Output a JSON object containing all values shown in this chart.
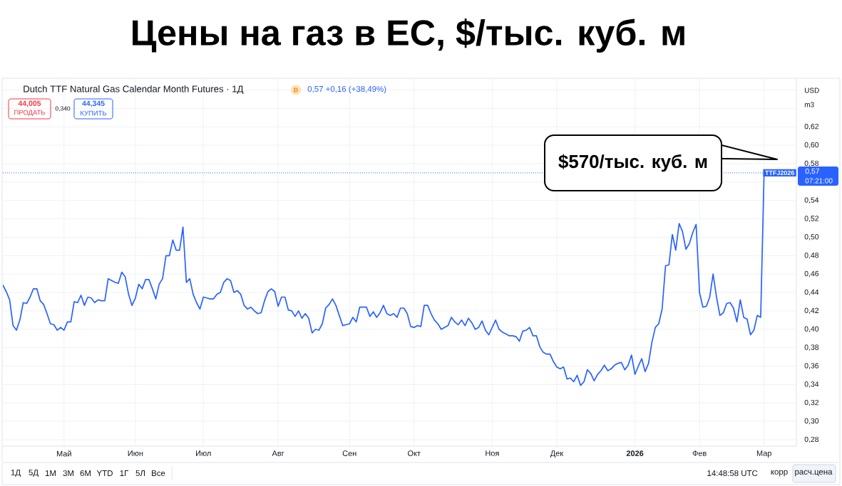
{
  "chart_data": {
    "type": "line",
    "title": "Цены на газ в ЕС, $/тыс. куб. м",
    "subtitle": "Dutch TTF Natural Gas Calendar Month Futures · 1Д",
    "color": "#2962ff",
    "line_style": "solid",
    "grid": true,
    "categories": [
      null,
      null,
      null,
      null,
      null,
      null,
      null,
      null,
      null,
      null,
      null,
      null,
      null,
      null,
      null,
      null,
      null,
      null,
      "Май",
      null,
      null,
      null,
      null,
      null,
      null,
      null,
      null,
      null,
      null,
      null,
      null,
      null,
      null,
      null,
      null,
      null,
      null,
      null,
      null,
      "Июн",
      null,
      null,
      null,
      null,
      null,
      null,
      null,
      null,
      null,
      null,
      null,
      null,
      null,
      null,
      null,
      null,
      null,
      null,
      null,
      "Июл",
      null,
      null,
      null,
      null,
      null,
      null,
      null,
      null,
      null,
      null,
      null,
      null,
      null,
      null,
      null,
      null,
      null,
      null,
      null,
      null,
      null,
      "Авг",
      null,
      null,
      null,
      null,
      null,
      null,
      null,
      null,
      null,
      null,
      null,
      null,
      null,
      null,
      null,
      null,
      null,
      null,
      null,
      null,
      "Сен",
      null,
      null,
      null,
      null,
      null,
      null,
      null,
      null,
      null,
      null,
      null,
      null,
      null,
      null,
      null,
      null,
      null,
      null,
      "Окт",
      null,
      null,
      null,
      null,
      null,
      null,
      null,
      null,
      null,
      null,
      null,
      null,
      null,
      null,
      null,
      null,
      null,
      null,
      null,
      null,
      null,
      null,
      "Ноя",
      null,
      null,
      null,
      null,
      null,
      null,
      null,
      null,
      null,
      null,
      null,
      null,
      null,
      null,
      null,
      null,
      null,
      null,
      "Дек",
      null,
      null,
      null,
      null,
      null,
      null,
      null,
      null,
      null,
      null,
      null,
      null,
      null,
      null,
      null,
      null,
      null,
      null,
      null,
      null,
      null,
      null,
      "2026",
      null,
      null,
      null,
      null,
      null,
      null,
      null,
      null,
      null,
      null,
      null,
      null,
      null,
      null,
      null,
      null,
      null,
      null,
      "Фев",
      null,
      null,
      null,
      null,
      null,
      null,
      null,
      null,
      null,
      null,
      null,
      null,
      null,
      null,
      null,
      null,
      null,
      null,
      "Мар"
    ],
    "values": [
      0.448,
      0.441,
      0.432,
      0.404,
      0.399,
      0.41,
      0.429,
      0.428,
      0.435,
      0.444,
      0.444,
      0.431,
      0.427,
      0.417,
      0.406,
      0.405,
      0.399,
      0.402,
      0.399,
      0.408,
      0.408,
      0.43,
      0.429,
      0.437,
      0.426,
      0.435,
      0.434,
      0.429,
      0.432,
      0.431,
      0.431,
      0.455,
      0.453,
      0.451,
      0.45,
      0.462,
      0.457,
      0.438,
      0.426,
      0.434,
      0.449,
      0.444,
      0.454,
      0.454,
      0.444,
      0.433,
      0.449,
      0.455,
      0.48,
      0.48,
      0.497,
      0.486,
      0.486,
      0.511,
      0.451,
      0.455,
      0.438,
      0.429,
      0.422,
      0.435,
      0.434,
      0.433,
      0.433,
      0.438,
      0.44,
      0.451,
      0.455,
      0.453,
      0.44,
      0.442,
      0.438,
      0.426,
      0.422,
      0.424,
      0.42,
      0.417,
      0.418,
      0.431,
      0.441,
      0.444,
      0.441,
      0.425,
      0.435,
      0.435,
      0.421,
      0.42,
      0.414,
      0.42,
      0.412,
      0.417,
      0.412,
      0.396,
      0.4,
      0.399,
      0.406,
      0.423,
      0.427,
      0.433,
      0.426,
      0.415,
      0.404,
      0.405,
      0.406,
      0.413,
      0.408,
      0.424,
      0.424,
      0.424,
      0.414,
      0.419,
      0.413,
      0.418,
      0.426,
      0.417,
      0.415,
      0.417,
      0.413,
      0.423,
      0.423,
      0.417,
      0.403,
      0.402,
      0.404,
      0.403,
      0.426,
      0.426,
      0.417,
      0.41,
      0.406,
      0.4,
      0.402,
      0.404,
      0.413,
      0.408,
      0.405,
      0.41,
      0.404,
      0.412,
      0.407,
      0.4,
      0.402,
      0.409,
      0.399,
      0.394,
      0.402,
      0.41,
      0.4,
      0.397,
      0.395,
      0.393,
      0.393,
      0.392,
      0.387,
      0.398,
      0.399,
      0.402,
      0.393,
      0.393,
      0.381,
      0.375,
      0.373,
      0.373,
      0.365,
      0.359,
      0.357,
      0.359,
      0.346,
      0.347,
      0.343,
      0.35,
      0.339,
      0.343,
      0.356,
      0.352,
      0.344,
      0.351,
      0.355,
      0.361,
      0.355,
      0.357,
      0.361,
      0.363,
      0.364,
      0.356,
      0.361,
      0.372,
      0.351,
      0.36,
      0.368,
      0.354,
      0.363,
      0.386,
      0.402,
      0.406,
      0.422,
      0.469,
      0.47,
      0.503,
      0.486,
      0.515,
      0.506,
      0.487,
      0.493,
      0.505,
      0.514,
      0.44,
      0.424,
      0.425,
      0.435,
      0.46,
      0.435,
      0.415,
      0.418,
      0.428,
      0.429,
      0.423,
      0.408,
      0.432,
      0.413,
      0.411,
      0.394,
      0.399,
      0.415,
      0.413,
      0.57
    ],
    "ylim": [
      0.273,
      0.672
    ],
    "yticks": [
      {
        "value": 0.28,
        "label": "0,28"
      },
      {
        "value": 0.3,
        "label": "0,30"
      },
      {
        "value": 0.32,
        "label": "0,32"
      },
      {
        "value": 0.34,
        "label": "0,34"
      },
      {
        "value": 0.36,
        "label": "0,36"
      },
      {
        "value": 0.38,
        "label": "0,38"
      },
      {
        "value": 0.4,
        "label": "0,40"
      },
      {
        "value": 0.42,
        "label": "0,42"
      },
      {
        "value": 0.44,
        "label": "0,44"
      },
      {
        "value": 0.46,
        "label": "0,46"
      },
      {
        "value": 0.48,
        "label": "0,48"
      },
      {
        "value": 0.5,
        "label": "0,50"
      },
      {
        "value": 0.52,
        "label": "0,52"
      },
      {
        "value": 0.54,
        "label": "0,54"
      },
      {
        "value": 0.56,
        "label": null
      },
      {
        "value": 0.58,
        "label": "0,58"
      },
      {
        "value": 0.6,
        "label": "0,60"
      },
      {
        "value": 0.62,
        "label": "0,62"
      },
      {
        "value": 0.64,
        "label": null
      },
      {
        "value": 0.66,
        "label": null
      }
    ],
    "ref_lines": [
      {
        "axis": "y",
        "value": 0.57,
        "label": "TTFJ2026",
        "color": "#2962ff",
        "line_style": "dotted"
      }
    ],
    "annotations": [
      "0,57 +0,16 (+38,49%)",
      "D",
      "44,005",
      "ПРОДАТЬ",
      "0,340",
      "44,345",
      "КУПИТЬ",
      "USD",
      "m3",
      "0,57",
      "07:21:00",
      "1Д",
      "5Д",
      "1M",
      "3M",
      "6M",
      "YTD",
      "1Г",
      "5Л",
      "Все",
      "14:48:58 UTC",
      "корр",
      "расч.цена",
      "$570/тыс. куб. м"
    ]
  }
}
